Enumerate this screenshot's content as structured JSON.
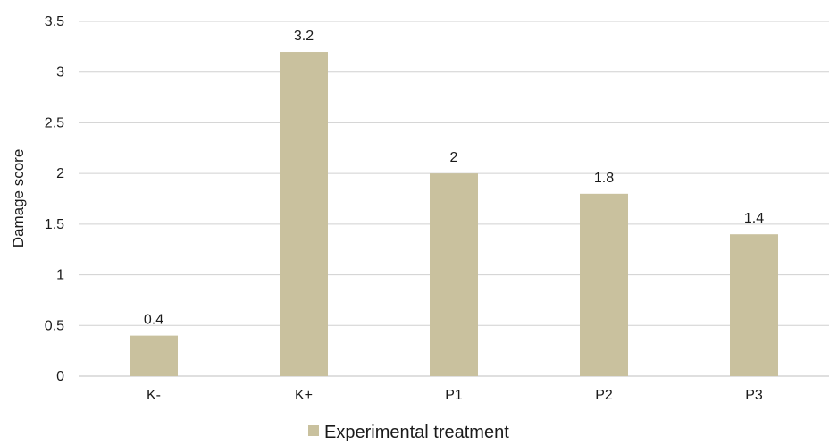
{
  "chart_data": {
    "type": "bar",
    "categories": [
      "K-",
      "K+",
      "P1",
      "P2",
      "P3"
    ],
    "series": [
      {
        "name": "Experimental treatment",
        "values": [
          0.4,
          3.2,
          2,
          1.8,
          1.4
        ],
        "color": "#c9c19e"
      }
    ],
    "data_labels": [
      "0.4",
      "3.2",
      "2",
      "1.8",
      "1.4"
    ],
    "ylabel": "Damage score",
    "xlabel": "",
    "ylim": [
      0,
      3.5
    ],
    "yticks": [
      0,
      0.5,
      1,
      1.5,
      2,
      2.5,
      3,
      3.5
    ],
    "ytick_labels": [
      "0",
      "0.5",
      "1",
      "1.5",
      "2",
      "2.5",
      "3",
      "3.5"
    ],
    "grid": true,
    "legend_position": "bottom",
    "colors": {
      "bar": "#c9c19e",
      "grid": "#d0d0d0",
      "text": "#1a1a1a"
    }
  }
}
